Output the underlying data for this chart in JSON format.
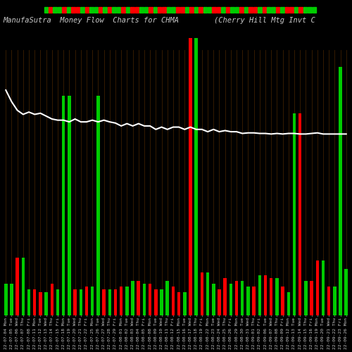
{
  "title": "ManufaSutra  Money Flow  Charts for CHMA        (Cherry Hill Mtg Invt C",
  "background_color": "#000000",
  "grid_color": "#3d2000",
  "num_bars": 60,
  "bar_values": [
    55,
    55,
    100,
    100,
    45,
    45,
    40,
    40,
    55,
    45,
    380,
    380,
    45,
    45,
    50,
    50,
    380,
    45,
    45,
    45,
    50,
    50,
    60,
    60,
    55,
    55,
    45,
    45,
    60,
    50,
    40,
    40,
    480,
    480,
    75,
    75,
    55,
    45,
    65,
    55,
    60,
    60,
    50,
    50,
    70,
    70,
    65,
    65,
    50,
    40,
    350,
    350,
    60,
    60,
    95,
    95,
    50,
    50,
    430,
    80
  ],
  "bar_colors": [
    "green",
    "green",
    "red",
    "green",
    "green",
    "red",
    "red",
    "green",
    "red",
    "green",
    "green",
    "green",
    "red",
    "green",
    "red",
    "green",
    "green",
    "red",
    "green",
    "red",
    "red",
    "green",
    "green",
    "red",
    "green",
    "red",
    "red",
    "green",
    "green",
    "red",
    "red",
    "green",
    "red",
    "green",
    "red",
    "green",
    "green",
    "red",
    "red",
    "green",
    "red",
    "green",
    "green",
    "red",
    "green",
    "red",
    "red",
    "green",
    "red",
    "green",
    "green",
    "red",
    "green",
    "red",
    "red",
    "green",
    "red",
    "green",
    "green",
    "green"
  ],
  "line_values": [
    390,
    370,
    355,
    348,
    352,
    348,
    350,
    345,
    340,
    338,
    338,
    335,
    340,
    335,
    335,
    338,
    335,
    338,
    335,
    333,
    328,
    332,
    328,
    332,
    328,
    328,
    322,
    326,
    322,
    326,
    326,
    322,
    326,
    322,
    322,
    318,
    322,
    318,
    320,
    318,
    318,
    315,
    316,
    316,
    315,
    315,
    314,
    315,
    314,
    315,
    315,
    314,
    314,
    315,
    316,
    314,
    314,
    314,
    314,
    314
  ],
  "top_strip_colors": [
    "green",
    "red",
    "green",
    "green",
    "red",
    "green",
    "red",
    "red",
    "green",
    "red",
    "green",
    "green",
    "red",
    "green",
    "red",
    "green",
    "green",
    "red",
    "green",
    "red",
    "red",
    "green",
    "green",
    "red",
    "green",
    "red",
    "red",
    "green",
    "green",
    "red",
    "red",
    "green",
    "red",
    "green",
    "red",
    "green",
    "green",
    "red",
    "red",
    "green",
    "red",
    "green",
    "green",
    "red",
    "green",
    "red",
    "red",
    "green",
    "red",
    "green",
    "green",
    "red",
    "green",
    "red",
    "red",
    "green",
    "red",
    "green",
    "green",
    "green"
  ],
  "xtick_labels": [
    "22-07-04 Mon",
    "22-07-05 Tue",
    "22-07-06 Wed",
    "22-07-07 Thu",
    "22-07-08 Fri",
    "22-07-11 Mon",
    "22-07-12 Tue",
    "22-07-13 Wed",
    "22-07-14 Thu",
    "22-07-15 Fri",
    "22-07-18 Mon",
    "22-07-19 Tue",
    "22-07-20 Wed",
    "22-07-21 Thu",
    "22-07-22 Fri",
    "22-07-25 Mon",
    "22-07-26 Tue",
    "22-07-27 Wed",
    "22-07-28 Thu",
    "22-07-29 Fri",
    "22-08-01 Mon",
    "22-08-02 Tue",
    "22-08-03 Wed",
    "22-08-04 Thu",
    "22-08-05 Fri",
    "22-08-08 Mon",
    "22-08-09 Tue",
    "22-08-10 Wed",
    "22-08-11 Thu",
    "22-08-12 Fri",
    "22-08-15 Mon",
    "22-08-16 Tue",
    "22-08-17 Wed",
    "22-08-18 Thu",
    "22-08-19 Fri",
    "22-08-22 Mon",
    "22-08-23 Tue",
    "22-08-24 Wed",
    "22-08-25 Thu",
    "22-08-26 Fri",
    "22-08-29 Mon",
    "22-08-30 Tue",
    "22-08-31 Wed",
    "22-09-01 Thu",
    "22-09-02 Fri",
    "22-09-06 Tue",
    "22-09-07 Wed",
    "22-09-08 Thu",
    "22-09-09 Fri",
    "22-09-12 Mon",
    "22-09-13 Tue",
    "22-09-14 Wed",
    "22-09-15 Thu",
    "22-09-16 Fri",
    "22-09-19 Mon",
    "22-09-20 Tue",
    "22-09-21 Wed",
    "22-09-22 Thu",
    "22-09-23 Fri",
    "22-09-26 Mon"
  ],
  "ylim": [
    0,
    500
  ],
  "red_color": "#ff0000",
  "green_color": "#00cc00",
  "line_color": "#ffffff",
  "text_color": "#c8c8c8",
  "title_fontsize": 7.5,
  "tick_fontsize": 4.5
}
